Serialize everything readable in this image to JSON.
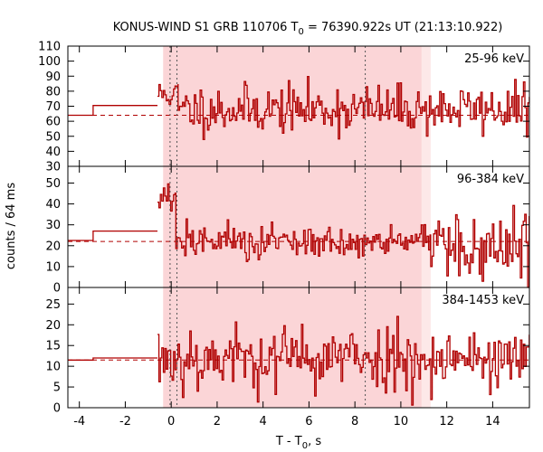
{
  "chart_data": {
    "type": "line",
    "title_main": "KONUS-WIND S1 GRB 110706 T",
    "title_sub": "0",
    "title_rest": " = 76390.922s UT (21:13:10.922)",
    "xlabel_main": "T - T",
    "xlabel_sub": "0",
    "xlabel_rest": ", s",
    "ylabel": "counts / 64 ms",
    "xlim": [
      -4.5,
      15.6
    ],
    "xticks": [
      -4,
      -2,
      0,
      2,
      4,
      6,
      8,
      10,
      12,
      14
    ],
    "shaded_interval": [
      -0.35,
      11.3
    ],
    "shaded_interval_inner": [
      -0.35,
      10.9
    ],
    "vertical_markers": [
      -0.05,
      0.25,
      8.45
    ],
    "panels": [
      {
        "label": "25-96 keV",
        "ylim": [
          30,
          110
        ],
        "yticks": [
          30,
          40,
          50,
          60,
          70,
          80,
          90,
          100,
          110
        ],
        "background_level": 64,
        "pre_trigger": {
          "x": [
            -4.5,
            -3.4,
            -3.4,
            -0.6
          ],
          "y": [
            64,
            64,
            70.5,
            70.5
          ]
        },
        "seed": 11,
        "segments": [
          {
            "x0": -0.6,
            "x1": 0.3,
            "mean": 78,
            "sd": 5
          },
          {
            "x0": 0.3,
            "x1": 15.6,
            "mean": 68,
            "sd": 8
          }
        ]
      },
      {
        "label": "96-384 keV",
        "ylim": [
          0,
          58
        ],
        "yticks": [
          0,
          10,
          20,
          30,
          40,
          50
        ],
        "background_level": 22,
        "pre_trigger": {
          "x": [
            -4.5,
            -3.4,
            -3.4,
            -0.6
          ],
          "y": [
            22.5,
            22.5,
            27,
            27
          ]
        },
        "seed": 27,
        "segments": [
          {
            "x0": -0.6,
            "x1": 0.2,
            "mean": 42,
            "sd": 5
          },
          {
            "x0": 0.2,
            "x1": 11.3,
            "mean": 22,
            "sd": 4
          },
          {
            "x0": 11.3,
            "x1": 15.6,
            "mean": 17,
            "sd": 8
          }
        ]
      },
      {
        "label": "384-1453 keV",
        "ylim": [
          0,
          29
        ],
        "yticks": [
          0,
          5,
          10,
          15,
          20,
          25
        ],
        "background_level": 11.5,
        "pre_trigger": {
          "x": [
            -4.5,
            -3.4,
            -3.4,
            -0.6
          ],
          "y": [
            11.5,
            11.5,
            12,
            12
          ]
        },
        "seed": 53,
        "segments": [
          {
            "x0": -0.6,
            "x1": 15.6,
            "mean": 12,
            "sd": 4
          }
        ]
      }
    ]
  }
}
